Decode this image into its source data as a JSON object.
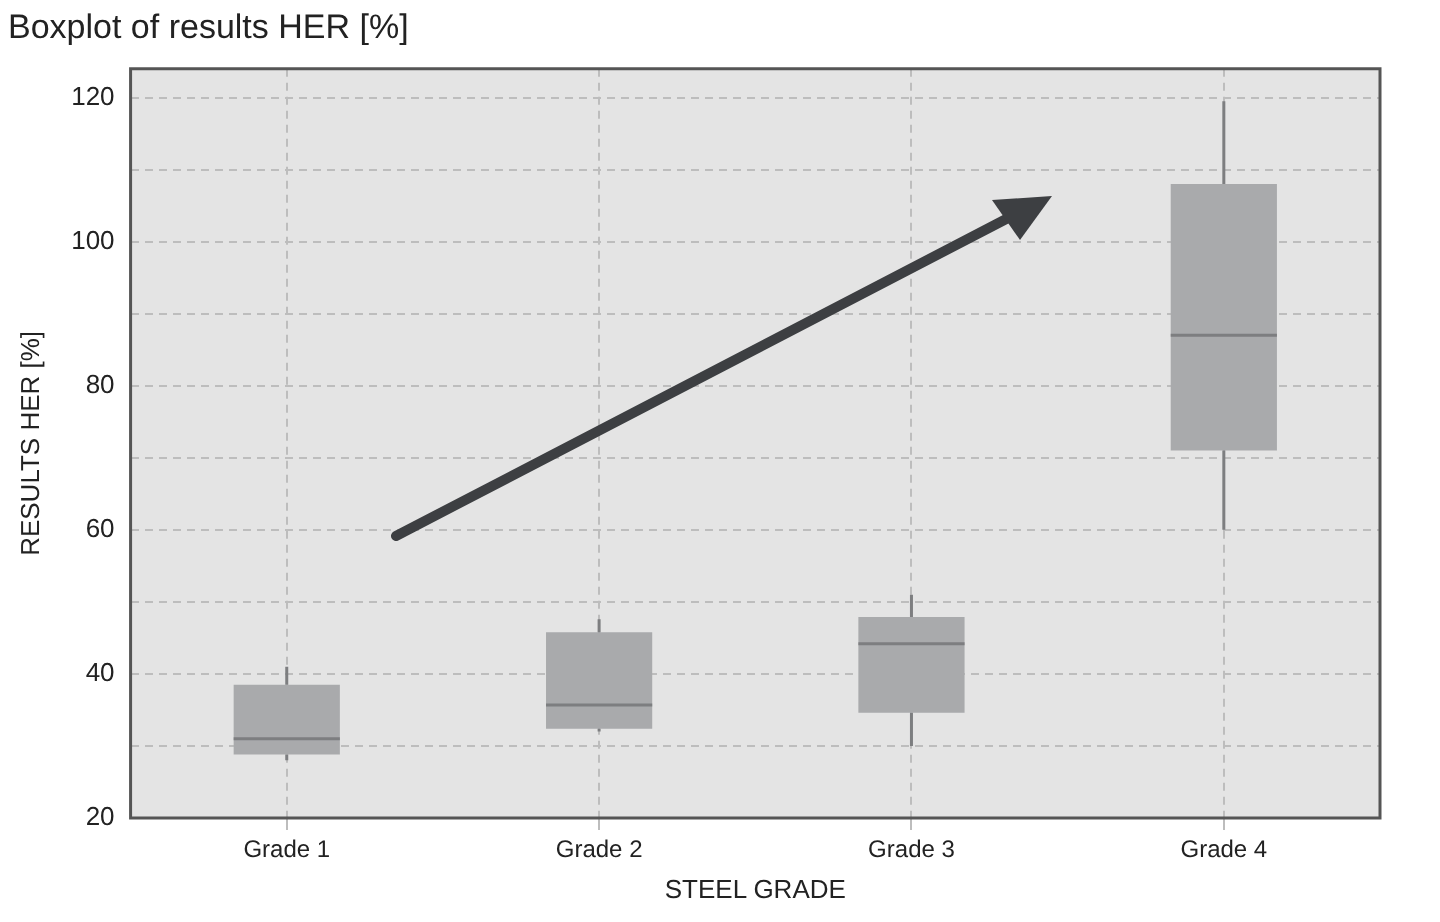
{
  "chart_data": {
    "type": "box",
    "title": "Boxplot of results HER [%]",
    "xlabel": "STEEL GRADE",
    "ylabel": "RESULTS HER [%]",
    "categories": [
      "Grade 1",
      "Grade 2",
      "Grade 3",
      "Grade 4"
    ],
    "boxes": [
      {
        "low": 28,
        "q1": 28.8,
        "median": 31,
        "q3": 38.5,
        "high": 41
      },
      {
        "low": 32,
        "q1": 32.4,
        "median": 35.7,
        "q3": 45.8,
        "high": 47.6
      },
      {
        "low": 30,
        "q1": 34.6,
        "median": 44.2,
        "q3": 47.9,
        "high": 51
      },
      {
        "low": 60,
        "q1": 71,
        "median": 87,
        "q3": 108,
        "high": 119.5
      }
    ],
    "color": "#a9aaac",
    "ylim": [
      20,
      124
    ],
    "yticks": [
      20,
      {
        "value": 30,
        "label": null
      },
      40,
      {
        "value": 50,
        "label": null
      },
      60,
      {
        "value": 70,
        "label": null
      },
      80,
      {
        "value": 90,
        "label": null
      },
      100,
      {
        "value": 110,
        "label": null
      },
      120
    ],
    "grid": true
  }
}
